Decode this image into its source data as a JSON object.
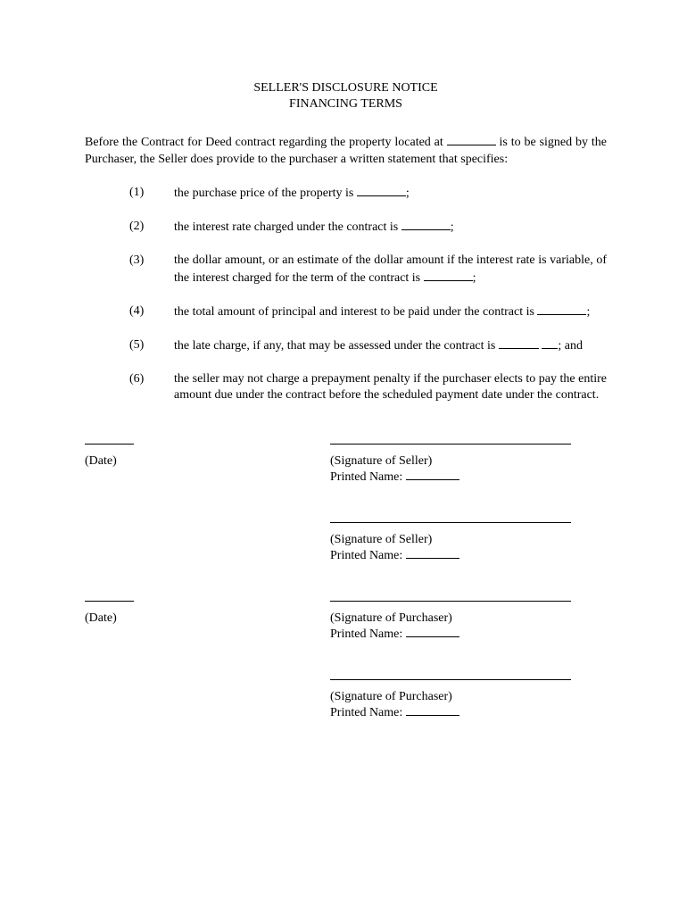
{
  "title_line1": "SELLER'S DISCLOSURE NOTICE",
  "title_line2": "FINANCING TERMS",
  "intro_part1": "Before the Contract for Deed contract regarding the property located at ",
  "intro_part2": " is to be signed by the Purchaser, the Seller does provide to the purchaser a written statement that specifies:",
  "items": [
    {
      "num": "(1)",
      "text_pre": "the purchase price of the property is ",
      "text_post": ";"
    },
    {
      "num": "(2)",
      "text_pre": "the interest rate charged under the contract is ",
      "text_post": ";"
    },
    {
      "num": "(3)",
      "text_pre": "the dollar amount, or an estimate of the dollar amount if the interest rate is variable, of the interest charged for the term of the contract is ",
      "text_post": ";"
    },
    {
      "num": "(4)",
      "text_pre": "the total amount of principal and interest to be paid under the contract is ",
      "text_post": ";"
    },
    {
      "num": "(5)",
      "text_pre": "the late charge, if any, that may be assessed under the contract is ",
      "text_post": "; and",
      "split_blank": true
    },
    {
      "num": "(6)",
      "text_pre": "the seller may not charge a prepayment penalty if the purchaser elects to pay the entire amount due under the contract before the scheduled payment date under the contract.",
      "no_blank": true
    }
  ],
  "date_label": "(Date)",
  "sig_seller_label": "(Signature of Seller)",
  "sig_purchaser_label": "(Signature of Purchaser)",
  "printed_name_label": "Printed Name: "
}
